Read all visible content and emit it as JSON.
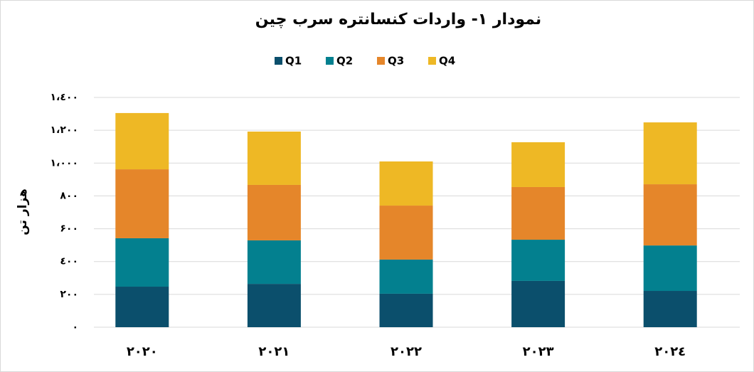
{
  "chart_data": {
    "type": "stacked-bar",
    "title": "نمودار ۱- واردات کنسانتره سرب چین",
    "y_label": "هزار تن",
    "categories": [
      "۲۰۲۰",
      "۲۰۲۱",
      "۲۰۲۲",
      "۲۰۲۳",
      "۲۰۲٤"
    ],
    "series": [
      {
        "name": "Q1",
        "color": "#0b4f6c",
        "values": [
          247,
          264,
          204,
          282,
          221
        ]
      },
      {
        "name": "Q2",
        "color": "#03808f",
        "values": [
          295,
          265,
          208,
          251,
          277
        ]
      },
      {
        "name": "Q3",
        "color": "#e5862a",
        "values": [
          420,
          338,
          329,
          321,
          373
        ]
      },
      {
        "name": "Q4",
        "color": "#eeb825",
        "values": [
          343,
          325,
          269,
          273,
          377
        ]
      }
    ],
    "ylim": [
      0,
      1400
    ],
    "yticks": [
      {
        "value": 0,
        "label": "۰"
      },
      {
        "value": 200,
        "label": "۲۰۰"
      },
      {
        "value": 400,
        "label": "٤۰۰"
      },
      {
        "value": 600,
        "label": "۶۰۰"
      },
      {
        "value": 800,
        "label": "۸۰۰"
      },
      {
        "value": 1000,
        "label": "۱،۰۰۰"
      },
      {
        "value": 1200,
        "label": "۱،۲۰۰"
      },
      {
        "value": 1400,
        "label": "۱،٤۰۰"
      }
    ],
    "grid": true,
    "legend": "top"
  }
}
